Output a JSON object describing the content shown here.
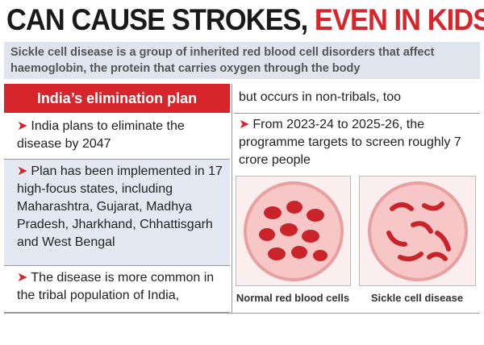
{
  "header": {
    "title": "CAN CAUSE STROKES,",
    "title_highlight": "EVEN IN KIDS"
  },
  "intro": "Sickle cell disease is a group of inherited red blood cell disorders that affect haemoglobin, the protein that carries oxygen through the body",
  "plan": {
    "heading": "India’s elimination plan",
    "points": [
      "India plans to eliminate the disease by 2047",
      "Plan has been implemented in 17 high-focus states, including Maharashtra, Gujarat, Madhya Pradesh, Jharkhand, Chhattisgarh and West Bengal",
      "The disease is more common in the tribal population of India,"
    ]
  },
  "right": {
    "continuation": "but occurs in non-tribals, too",
    "point": "From 2023-24 to 2025-26, the programme targets to screen roughly 7 crore people",
    "images": [
      {
        "caption": "Normal red blood cells"
      },
      {
        "caption": "Sickle cell disease"
      }
    ]
  }
}
